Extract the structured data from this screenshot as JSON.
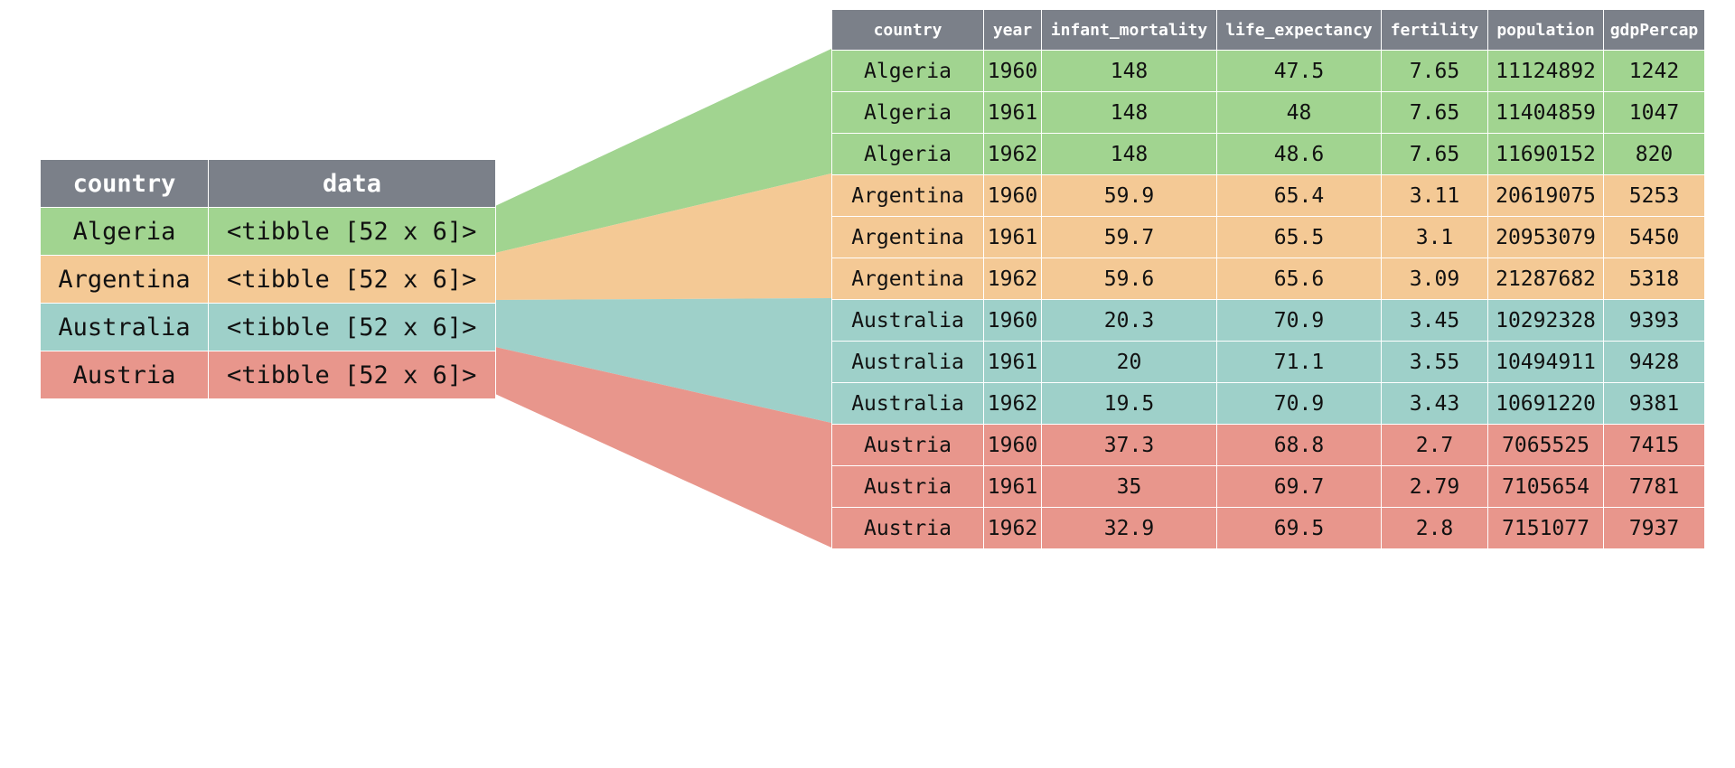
{
  "colors": {
    "header": "#7b8089",
    "header_text": "#ffffff",
    "algeria": "#a1d490",
    "argentina": "#f4c995",
    "australia": "#9ed0c9",
    "austria": "#e8968c"
  },
  "nested_table": {
    "headers": [
      "country",
      "data"
    ],
    "rows": [
      {
        "country": "Algeria",
        "data": "<tibble [52 x 6]>",
        "group": "algeria"
      },
      {
        "country": "Argentina",
        "data": "<tibble [52 x 6]>",
        "group": "argentina"
      },
      {
        "country": "Australia",
        "data": "<tibble [52 x 6]>",
        "group": "australia"
      },
      {
        "country": "Austria",
        "data": "<tibble [52 x 6]>",
        "group": "austria"
      }
    ]
  },
  "long_table": {
    "headers": [
      "country",
      "year",
      "infant_mortality",
      "life_expectancy",
      "fertility",
      "population",
      "gdpPercap"
    ],
    "rows": [
      {
        "group": "algeria",
        "cells": [
          "Algeria",
          "1960",
          "148",
          "47.5",
          "7.65",
          "11124892",
          "1242"
        ]
      },
      {
        "group": "algeria",
        "cells": [
          "Algeria",
          "1961",
          "148",
          "48",
          "7.65",
          "11404859",
          "1047"
        ]
      },
      {
        "group": "algeria",
        "cells": [
          "Algeria",
          "1962",
          "148",
          "48.6",
          "7.65",
          "11690152",
          "820"
        ]
      },
      {
        "group": "argentina",
        "cells": [
          "Argentina",
          "1960",
          "59.9",
          "65.4",
          "3.11",
          "20619075",
          "5253"
        ]
      },
      {
        "group": "argentina",
        "cells": [
          "Argentina",
          "1961",
          "59.7",
          "65.5",
          "3.1",
          "20953079",
          "5450"
        ]
      },
      {
        "group": "argentina",
        "cells": [
          "Argentina",
          "1962",
          "59.6",
          "65.6",
          "3.09",
          "21287682",
          "5318"
        ]
      },
      {
        "group": "australia",
        "cells": [
          "Australia",
          "1960",
          "20.3",
          "70.9",
          "3.45",
          "10292328",
          "9393"
        ]
      },
      {
        "group": "australia",
        "cells": [
          "Australia",
          "1961",
          "20",
          "71.1",
          "3.55",
          "10494911",
          "9428"
        ]
      },
      {
        "group": "australia",
        "cells": [
          "Australia",
          "1962",
          "19.5",
          "70.9",
          "3.43",
          "10691220",
          "9381"
        ]
      },
      {
        "group": "austria",
        "cells": [
          "Austria",
          "1960",
          "37.3",
          "68.8",
          "2.7",
          "7065525",
          "7415"
        ]
      },
      {
        "group": "austria",
        "cells": [
          "Austria",
          "1961",
          "35",
          "69.7",
          "2.79",
          "7105654",
          "7781"
        ]
      },
      {
        "group": "austria",
        "cells": [
          "Austria",
          "1962",
          "32.9",
          "69.5",
          "2.8",
          "7151077",
          "7937"
        ]
      }
    ]
  }
}
